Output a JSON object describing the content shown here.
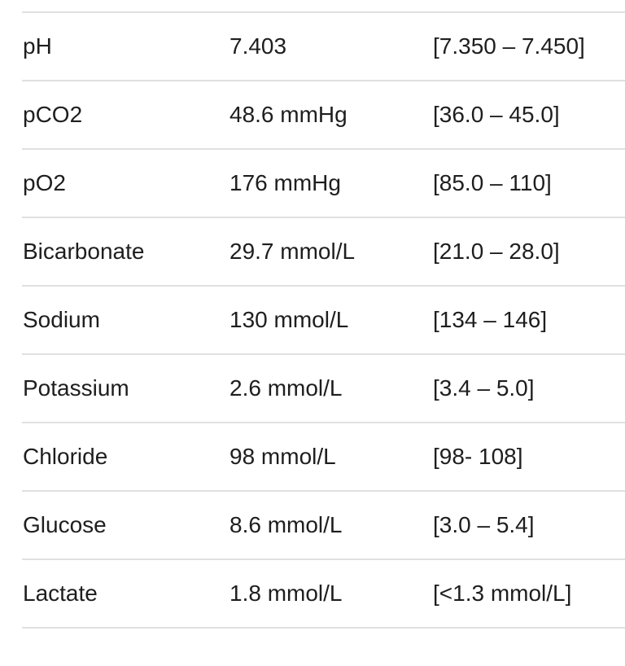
{
  "colors": {
    "text": "#1e1e1e",
    "divider": "#e0e0e0",
    "background": "#ffffff"
  },
  "table": {
    "rows": [
      {
        "label": "pH",
        "value": "7.403",
        "range": "[7.350 – 7.450]"
      },
      {
        "label": "pCO2",
        "value": "48.6 mmHg",
        "range": "[36.0 – 45.0]"
      },
      {
        "label": "pO2",
        "value": "176 mmHg",
        "range": "[85.0 – 110]"
      },
      {
        "label": "Bicarbonate",
        "value": "29.7 mmol/L",
        "range": "[21.0 – 28.0]"
      },
      {
        "label": "Sodium",
        "value": "130 mmol/L",
        "range": "[134 – 146]"
      },
      {
        "label": "Potassium",
        "value": "2.6 mmol/L",
        "range": "[3.4 – 5.0]"
      },
      {
        "label": "Chloride",
        "value": "98 mmol/L",
        "range": "[98- 108]"
      },
      {
        "label": "Glucose",
        "value": "8.6 mmol/L",
        "range": "[3.0 – 5.4]"
      },
      {
        "label": "Lactate",
        "value": "1.8 mmol/L",
        "range": "[<1.3 mmol/L]"
      }
    ]
  }
}
